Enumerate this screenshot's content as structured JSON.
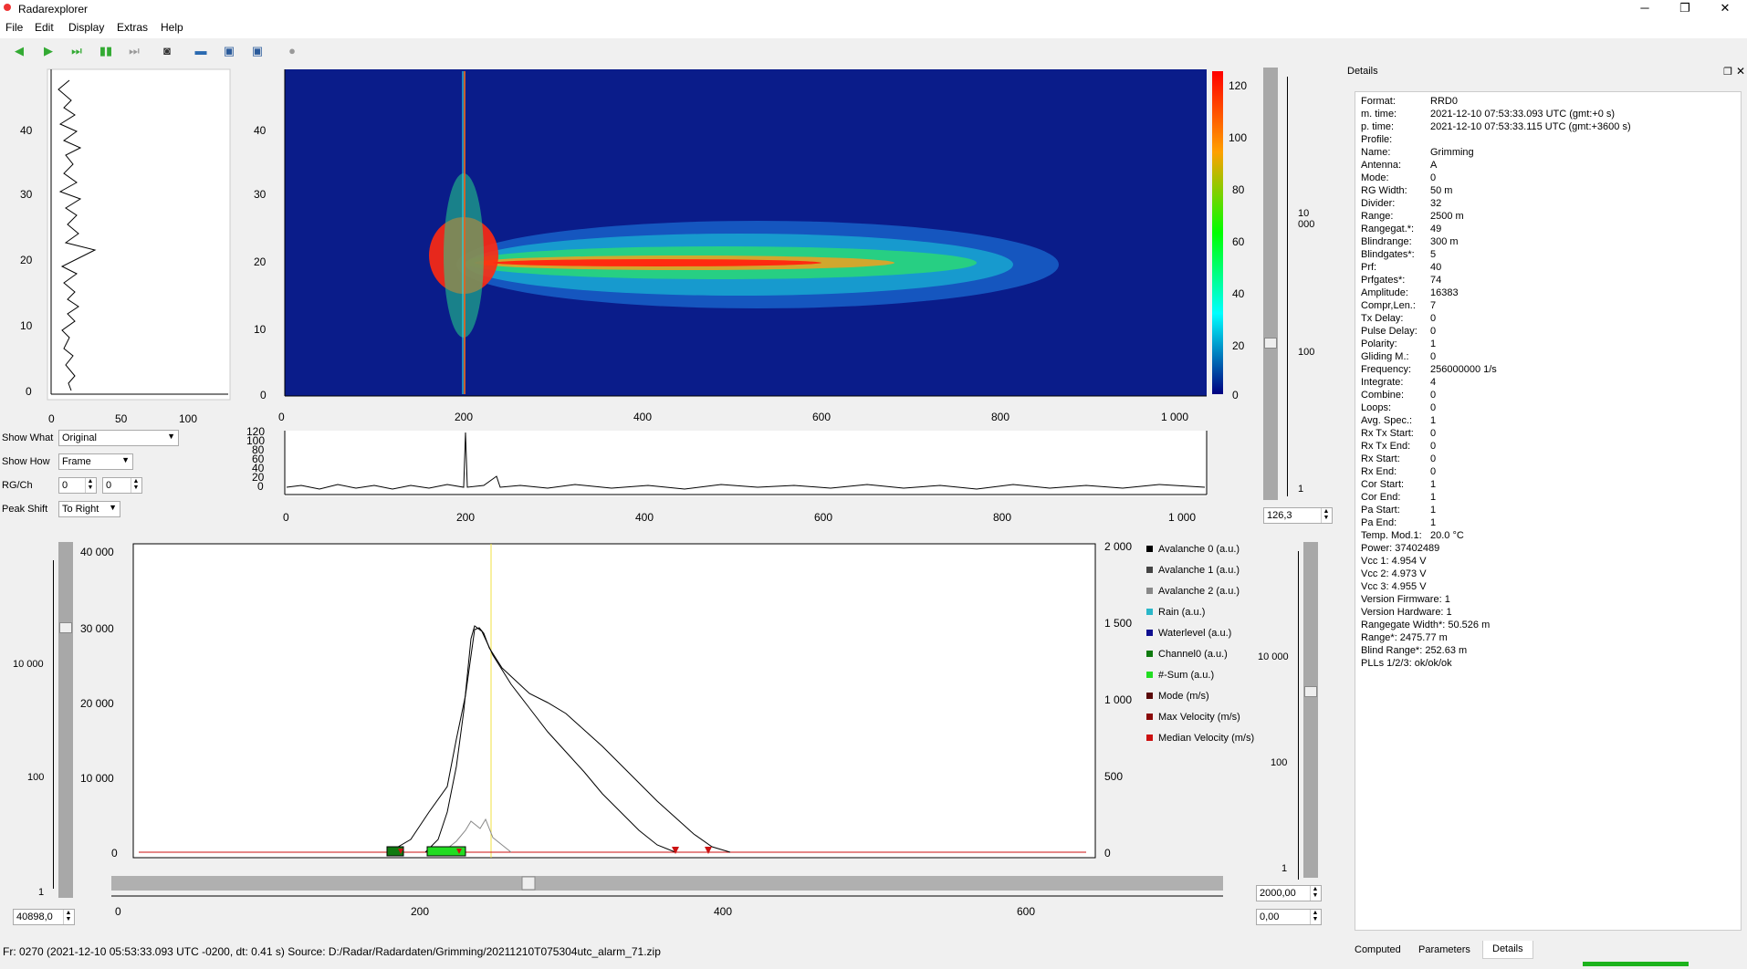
{
  "window": {
    "title": "Radarexplorer",
    "min": "─",
    "max": "❐",
    "close": "✕"
  },
  "menu": [
    {
      "label": "File"
    },
    {
      "label": "Edit"
    },
    {
      "label": "Display"
    },
    {
      "label": "Extras"
    },
    {
      "label": "Help"
    }
  ],
  "toolbar": [
    {
      "icon": "arrow-left-icon"
    },
    {
      "icon": "arrow-right-icon"
    },
    {
      "icon": "arrow-right-end-icon"
    },
    {
      "icon": "pause-icon"
    },
    {
      "icon": "skip-end-icon"
    },
    {
      "icon": "camera-icon"
    },
    {
      "icon": "folder-open-icon"
    },
    {
      "icon": "save-icon"
    },
    {
      "icon": "save-as-icon"
    },
    {
      "icon": "record-icon"
    }
  ],
  "controls": {
    "show_what_label": "Show What",
    "show_what_value": "Original",
    "show_how_label": "Show How",
    "show_how_value": "Frame",
    "rgch_label": "RG/Ch",
    "rg_value": "0",
    "ch_value": "0",
    "peak_shift_label": "Peak Shift",
    "peak_shift_value": "To Right"
  },
  "profile_plot": {
    "y_ticks": [
      "40",
      "30",
      "20",
      "10",
      "0"
    ],
    "x_ticks": [
      "0",
      "50",
      "100"
    ]
  },
  "heatmap": {
    "y_ticks": [
      "40",
      "30",
      "20",
      "10",
      "0"
    ],
    "x_ticks": [
      "0",
      "200",
      "400",
      "600",
      "800",
      "1 000"
    ],
    "colorbar_ticks": [
      "120",
      "100",
      "80",
      "60",
      "40",
      "20",
      "0"
    ]
  },
  "spectrum": {
    "y_ticks": [
      "120",
      "100",
      "80",
      "60",
      "40",
      "20",
      "0"
    ],
    "x_ticks": [
      "0",
      "200",
      "400",
      "600",
      "800",
      "1 000"
    ]
  },
  "right_slider": {
    "ticks": [
      "10 000",
      "100",
      "1"
    ],
    "value": "126,3"
  },
  "timeseries": {
    "y_left_ticks": [
      "40 000",
      "30 000",
      "20 000",
      "10 000",
      "0"
    ],
    "y_right_ticks": [
      "2 000",
      "1 500",
      "1 000",
      "500",
      "0"
    ],
    "x_ticks": [
      "0",
      "200",
      "400",
      "600"
    ],
    "legend": [
      {
        "label": "Avalanche 0 (a.u.)",
        "color": "#000000"
      },
      {
        "label": "Avalanche 1 (a.u.)",
        "color": "#444444"
      },
      {
        "label": "Avalanche 2 (a.u.)",
        "color": "#888888"
      },
      {
        "label": "Rain (a.u.)",
        "color": "#2ab7c9"
      },
      {
        "label": "Waterlevel (a.u.)",
        "color": "#101090"
      },
      {
        "label": "Channel0 (a.u.)",
        "color": "#0f7a0f"
      },
      {
        "label": "#-Sum (a.u.)",
        "color": "#22dd22"
      },
      {
        "label": "Mode (m/s)",
        "color": "#5a0a0a"
      },
      {
        "label": "Max Velocity (m/s)",
        "color": "#8a0a0a"
      },
      {
        "label": "Median Velocity (m/s)",
        "color": "#cc1111"
      }
    ]
  },
  "left_slider": {
    "ticks": [
      "10 000",
      "100",
      "1"
    ],
    "value": "40898,0"
  },
  "right_slider2": {
    "ticks": [
      "10 000",
      "100",
      "1"
    ],
    "value1": "2000,00",
    "value2": "0,00"
  },
  "details": {
    "title": "Details",
    "rows": [
      [
        "Format:",
        "RRD0"
      ],
      [
        "m. time:",
        "2021-12-10 07:53:33.093 UTC (gmt:+0 s)"
      ],
      [
        "p. time:",
        "2021-12-10 07:53:33.115 UTC (gmt:+3600 s)"
      ],
      [
        "Profile:",
        ""
      ],
      [
        "Name:",
        "Grimming"
      ],
      [
        "Antenna:",
        "A"
      ],
      [
        "Mode:",
        "0"
      ],
      [
        "RG Width:",
        "50 m"
      ],
      [
        "Divider:",
        "32"
      ],
      [
        "Range:",
        "2500 m"
      ],
      [
        "Rangegat.*:",
        "49"
      ],
      [
        "Blindrange:",
        "300 m"
      ],
      [
        "Blindgates*:",
        "5"
      ],
      [
        "Prf:",
        "40"
      ],
      [
        "Prfgates*:",
        "74"
      ],
      [
        "Amplitude:",
        "16383"
      ],
      [
        "Compr,Len.:",
        "7"
      ],
      [
        "Tx Delay:",
        "0"
      ],
      [
        "Pulse Delay:",
        "0"
      ],
      [
        "Polarity:",
        "1"
      ],
      [
        "Gliding M.:",
        "0"
      ],
      [
        "Frequency:",
        "256000000 1/s"
      ],
      [
        "Integrate:",
        "4"
      ],
      [
        "Combine:",
        "0"
      ],
      [
        "Loops:",
        "0"
      ],
      [
        "Avg. Spec.:",
        "1"
      ],
      [
        "Rx Tx Start:",
        "0"
      ],
      [
        "Rx Tx End:",
        "0"
      ],
      [
        "Rx Start:",
        "0"
      ],
      [
        "Rx End:",
        "0"
      ],
      [
        "Cor Start:",
        "1"
      ],
      [
        "Cor End:",
        "1"
      ],
      [
        "Pa Start:",
        "1"
      ],
      [
        "Pa End:",
        "1"
      ],
      [
        "Temp. Mod.1:",
        "20.0 °C"
      ]
    ],
    "free_rows": [
      "Power: 37402489",
      "Vcc 1: 4.954 V",
      "Vcc 2: 4.973 V",
      "Vcc 3: 4.955 V",
      "Version Firmware: 1",
      "Version Hardware: 1",
      "Rangegate Width*: 50.526 m",
      "Range*: 2475.77 m",
      "Blind Range*: 252.63 m",
      "PLLs 1/2/3: ok/ok/ok"
    ]
  },
  "tabs": [
    {
      "label": "Computed"
    },
    {
      "label": "Parameters"
    },
    {
      "label": "Details"
    }
  ],
  "status": "Fr: 0270 (2021-12-10 05:53:33.093 UTC -0200, dt: 0.41 s) Source: D:/Radar/Radardaten/Grimming/20211210T075304utc_alarm_71.zip"
}
